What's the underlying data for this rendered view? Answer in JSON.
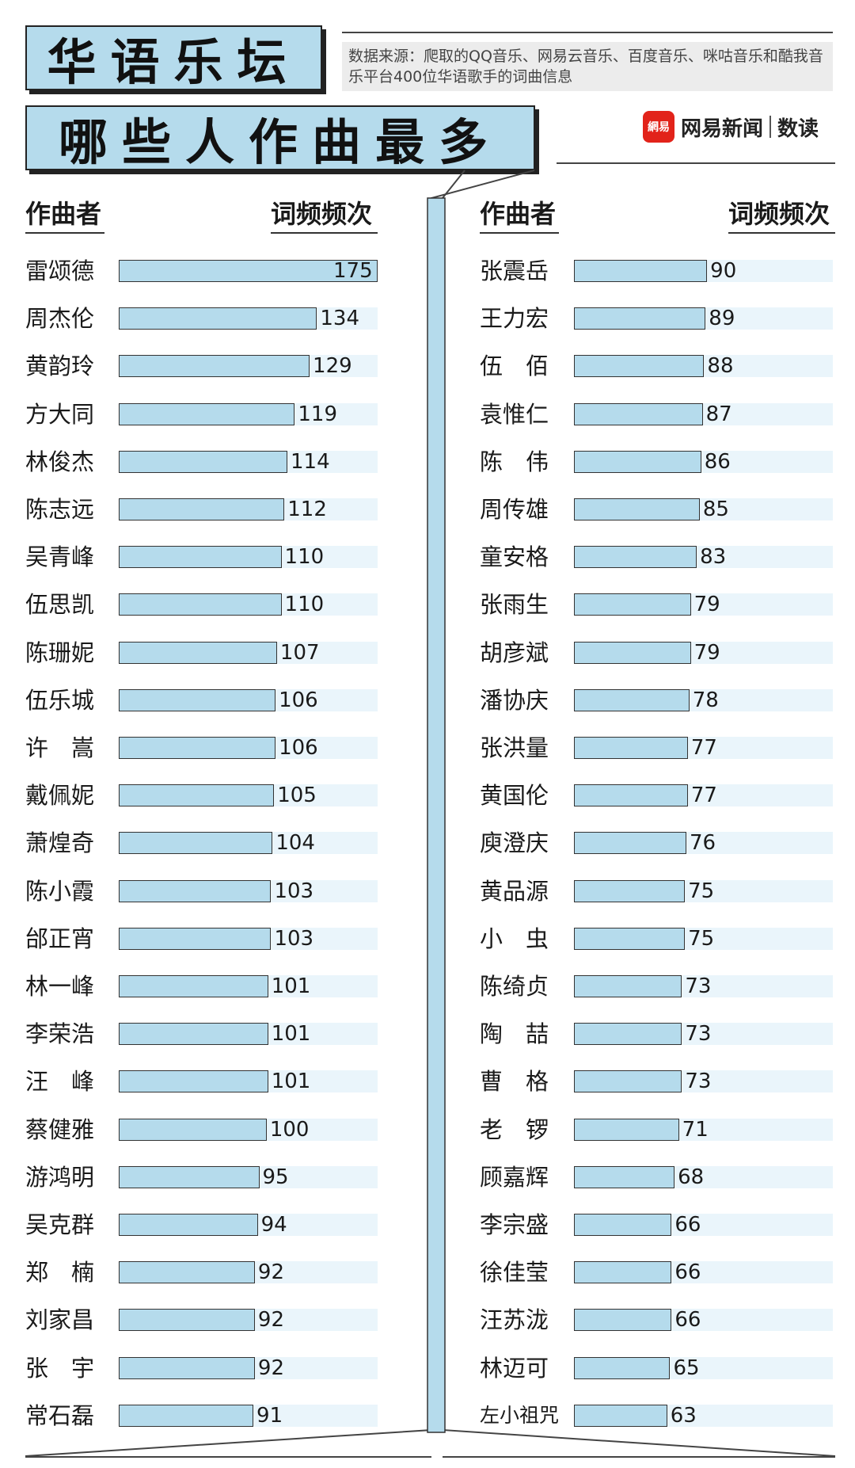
{
  "title": {
    "line1": "华语乐坛",
    "line2": "哪些人作曲最多"
  },
  "source": "数据来源：爬取的QQ音乐、网易云音乐、百度音乐、咪咕音乐和酷我音乐平台400位华语歌手的词曲信息",
  "logo": {
    "mark": "網易",
    "name": "网易新闻",
    "sub": "数读",
    "icon": "netease-logo-icon"
  },
  "colors": {
    "bar": "#b5dbec",
    "track": "#eaf5fb",
    "outline": "#333333"
  },
  "chart_data": {
    "type": "bar",
    "orientation": "horizontal",
    "xlabel": "词频频次",
    "ylabel": "作曲者",
    "xlim": [
      0,
      175
    ],
    "grid": false,
    "columns": [
      {
        "header_name": "作曲者",
        "header_value": "词频频次",
        "categories": [
          "雷颂德",
          "周杰伦",
          "黄韵玲",
          "方大同",
          "林俊杰",
          "陈志远",
          "吴青峰",
          "伍思凯",
          "陈珊妮",
          "伍乐城",
          "许　嵩",
          "戴佩妮",
          "萧煌奇",
          "陈小霞",
          "邰正宵",
          "林一峰",
          "李荣浩",
          "汪　峰",
          "蔡健雅",
          "游鸿明",
          "吴克群",
          "郑　楠",
          "刘家昌",
          "张　宇",
          "常石磊"
        ],
        "values": [
          175,
          134,
          129,
          119,
          114,
          112,
          110,
          110,
          107,
          106,
          106,
          105,
          104,
          103,
          103,
          101,
          101,
          101,
          100,
          95,
          94,
          92,
          92,
          92,
          91
        ]
      },
      {
        "header_name": "作曲者",
        "header_value": "词频频次",
        "categories": [
          "张震岳",
          "王力宏",
          "伍　佰",
          "袁惟仁",
          "陈　伟",
          "周传雄",
          "童安格",
          "张雨生",
          "胡彦斌",
          "潘协庆",
          "张洪量",
          "黄国伦",
          "庾澄庆",
          "黄品源",
          "小　虫",
          "陈绮贞",
          "陶　喆",
          "曹　格",
          "老　锣",
          "顾嘉辉",
          "李宗盛",
          "徐佳莹",
          "汪苏泷",
          "林迈可",
          "左小祖咒"
        ],
        "values": [
          90,
          89,
          88,
          87,
          86,
          85,
          83,
          79,
          79,
          78,
          77,
          77,
          76,
          75,
          75,
          73,
          73,
          73,
          71,
          68,
          66,
          66,
          66,
          65,
          63
        ]
      }
    ]
  }
}
